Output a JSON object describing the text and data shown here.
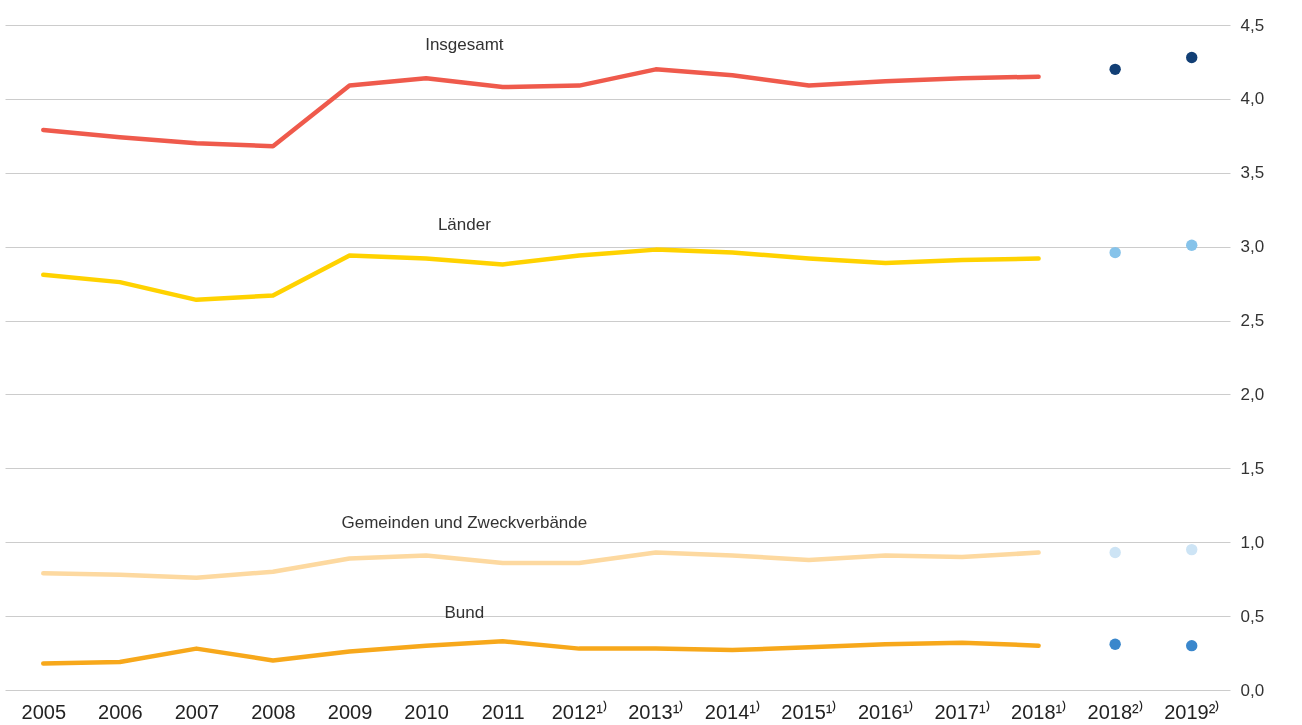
{
  "chart_data": {
    "type": "line",
    "categories": [
      "2005",
      "2006",
      "2007",
      "2008",
      "2009",
      "2010",
      "2011",
      "2012¹⁾",
      "2013¹⁾",
      "2014¹⁾",
      "2015¹⁾",
      "2016¹⁾",
      "2017¹⁾",
      "2018¹⁾",
      "2018²⁾",
      "2019²⁾"
    ],
    "series": [
      {
        "name": "Insgesamt",
        "color": "#ef5a4c",
        "values": [
          3.79,
          3.74,
          3.7,
          3.68,
          4.09,
          4.14,
          4.08,
          4.09,
          4.2,
          4.16,
          4.09,
          4.12,
          4.14,
          4.15,
          null,
          null
        ]
      },
      {
        "name": "Länder",
        "color": "#ffd200",
        "values": [
          2.81,
          2.76,
          2.64,
          2.67,
          2.94,
          2.92,
          2.88,
          2.94,
          2.98,
          2.96,
          2.92,
          2.89,
          2.91,
          2.92,
          null,
          null
        ]
      },
      {
        "name": "Gemeinden und Zweckverbände",
        "color": "#fdd9a0",
        "values": [
          0.79,
          0.78,
          0.76,
          0.8,
          0.89,
          0.91,
          0.86,
          0.86,
          0.93,
          0.91,
          0.88,
          0.91,
          0.9,
          0.93,
          null,
          null
        ]
      },
      {
        "name": "Bund",
        "color": "#f7a81b",
        "values": [
          0.18,
          0.19,
          0.28,
          0.2,
          0.26,
          0.3,
          0.33,
          0.28,
          0.28,
          0.27,
          0.29,
          0.31,
          0.32,
          0.3,
          null,
          null
        ]
      },
      {
        "type": "scatter",
        "marker": "circle",
        "color": "#123f75",
        "values": [
          null,
          null,
          null,
          null,
          null,
          null,
          null,
          null,
          null,
          null,
          null,
          null,
          null,
          null,
          4.2,
          4.28
        ]
      },
      {
        "type": "scatter",
        "marker": "circle",
        "color": "#86c3ea",
        "values": [
          null,
          null,
          null,
          null,
          null,
          null,
          null,
          null,
          null,
          null,
          null,
          null,
          null,
          null,
          2.96,
          3.01
        ]
      },
      {
        "type": "scatter",
        "marker": "circle",
        "color": "#cde4f5",
        "values": [
          null,
          null,
          null,
          null,
          null,
          null,
          null,
          null,
          null,
          null,
          null,
          null,
          null,
          null,
          0.93,
          0.95
        ]
      },
      {
        "type": "scatter",
        "marker": "circle",
        "color": "#3a87cc",
        "values": [
          null,
          null,
          null,
          null,
          null,
          null,
          null,
          null,
          null,
          null,
          null,
          null,
          null,
          null,
          0.31,
          0.3
        ]
      }
    ],
    "ylim": [
      0,
      4.5
    ],
    "yticks": [
      {
        "value": 0,
        "label": "0,0"
      },
      {
        "value": 0.5,
        "label": "0,5"
      },
      {
        "value": 1,
        "label": "1,0"
      },
      {
        "value": 1.5,
        "label": "1,5"
      },
      {
        "value": 2,
        "label": "2,0"
      },
      {
        "value": 2.5,
        "label": "2,5"
      },
      {
        "value": 3,
        "label": "3,0"
      },
      {
        "value": 3.5,
        "label": "3,5"
      },
      {
        "value": 4,
        "label": "4,0"
      },
      {
        "value": 4.5,
        "label": "4,5"
      }
    ],
    "grid": "y",
    "marker": "none",
    "line_style": "solid"
  }
}
